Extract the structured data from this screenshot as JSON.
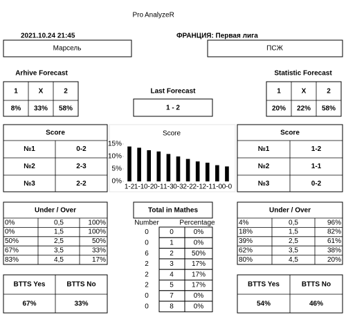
{
  "header": {
    "title_pro": "Pro",
    "title_rest": "AnalyzeR",
    "datetime": "2021.10.24 21:45",
    "league": "ФРАНЦИЯ: Первая лига"
  },
  "teams": {
    "home": "Марсель",
    "away": "ПСЖ"
  },
  "archive_forecast": {
    "title": "Arhive Forecast",
    "headers": [
      "1",
      "X",
      "2"
    ],
    "values": [
      "8%",
      "33%",
      "58%"
    ]
  },
  "statistic_forecast": {
    "title": "Statistic Forecast",
    "headers": [
      "1",
      "X",
      "2"
    ],
    "values": [
      "20%",
      "22%",
      "58%"
    ]
  },
  "last_forecast": {
    "title": "Last Forecast",
    "value": "1 - 2"
  },
  "score_home": {
    "title": "Score",
    "rows": [
      [
        "№1",
        "0-2"
      ],
      [
        "№2",
        "2-3"
      ],
      [
        "№3",
        "2-2"
      ]
    ]
  },
  "score_away": {
    "title": "Score",
    "rows": [
      [
        "№1",
        "1-2"
      ],
      [
        "№2",
        "1-1"
      ],
      [
        "№3",
        "0-2"
      ]
    ]
  },
  "chart_data": {
    "type": "bar",
    "title": "Score",
    "categories": [
      "1-2",
      "1-1",
      "0-2",
      "0-1",
      "1-3",
      "0-3",
      "2-2",
      "2-1",
      "2-1",
      "1-0",
      "0-0"
    ],
    "values": [
      14,
      13.5,
      12.5,
      12,
      11,
      10,
      9,
      8,
      7.5,
      6.5,
      6
    ],
    "color": "#000000",
    "ylim": [
      0,
      15
    ],
    "yticks": [
      {
        "value": 0,
        "label": "0%"
      },
      {
        "value": 5,
        "label": "5%"
      },
      {
        "value": 10,
        "label": "10%"
      },
      {
        "value": 15,
        "label": "15%"
      }
    ]
  },
  "under_over_home": {
    "title": "Under  /  Over",
    "rows": [
      [
        "0%",
        "0,5",
        "100%"
      ],
      [
        "0%",
        "1,5",
        "100%"
      ],
      [
        "50%",
        "2,5",
        "50%"
      ],
      [
        "67%",
        "3,5",
        "33%"
      ],
      [
        "83%",
        "4,5",
        "17%"
      ]
    ]
  },
  "under_over_away": {
    "title": "Under  /  Over",
    "rows": [
      [
        "4%",
        "0,5",
        "96%"
      ],
      [
        "18%",
        "1,5",
        "82%"
      ],
      [
        "39%",
        "2,5",
        "61%"
      ],
      [
        "62%",
        "3,5",
        "38%"
      ],
      [
        "80%",
        "4,5",
        "20%"
      ]
    ]
  },
  "total_in_matches": {
    "title": "Total in Mathes",
    "columns": [
      "Number",
      "Percentage"
    ],
    "rows": [
      [
        "0",
        "0",
        "0%"
      ],
      [
        "0",
        "1",
        "0%"
      ],
      [
        "6",
        "2",
        "50%"
      ],
      [
        "2",
        "3",
        "17%"
      ],
      [
        "2",
        "4",
        "17%"
      ],
      [
        "2",
        "5",
        "17%"
      ],
      [
        "0",
        "7",
        "0%"
      ],
      [
        "0",
        "8",
        "0%"
      ]
    ]
  },
  "btts_home": {
    "headers": [
      "BTTS Yes",
      "BTTS No"
    ],
    "values": [
      "67%",
      "33%"
    ]
  },
  "btts_away": {
    "headers": [
      "BTTS Yes",
      "BTTS No"
    ],
    "values": [
      "54%",
      "46%"
    ]
  }
}
